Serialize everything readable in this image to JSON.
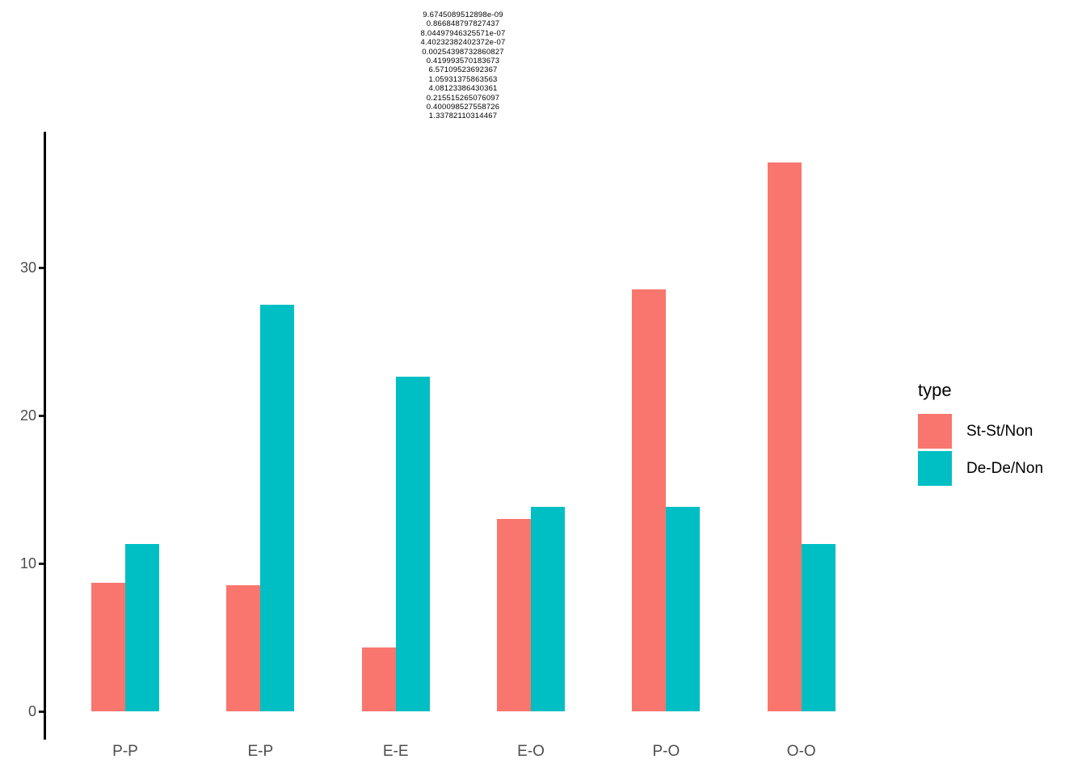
{
  "legend": {
    "title": "type"
  },
  "y_axis_tick_labels": [
    "0",
    "10",
    "20",
    "30"
  ],
  "x_axis_tick_labels": [
    "P-P",
    "E-P",
    "E-E",
    "E-O",
    "P-O",
    "O-O"
  ],
  "chart_data": {
    "type": "bar",
    "bar_mode": "grouped",
    "title_lines": [
      "9.6745089512898e-09",
      "0.866848797827437",
      "8.04497946325571e-07",
      "4.40232382402372e-07",
      "0.00254398732860827",
      "0.419993570183673",
      "6.57109523692367",
      "1.05931375863563",
      "4.08123386430361",
      "0.215515265076097",
      "0.400098527558726",
      "1.33782110314467"
    ],
    "categories": [
      "P-P",
      "E-P",
      "E-E",
      "E-O",
      "P-O",
      "O-O"
    ],
    "series": [
      {
        "name": "St-St/Non",
        "color": "#F8766D",
        "values": [
          8.7,
          8.5,
          4.3,
          13.0,
          28.5,
          37.1
        ]
      },
      {
        "name": "De-De/Non",
        "color": "#00BFC4",
        "values": [
          11.3,
          27.5,
          22.6,
          13.8,
          13.8,
          11.3
        ]
      }
    ],
    "xlabel": "",
    "ylabel": "",
    "yticks": [
      0,
      10,
      20,
      30
    ],
    "ylim": [
      0,
      39.2
    ],
    "legend_title": "type",
    "legend_position": "right",
    "grid": false,
    "axis_line_color": "#000000",
    "axis_text_color": "#4d4d4d"
  }
}
